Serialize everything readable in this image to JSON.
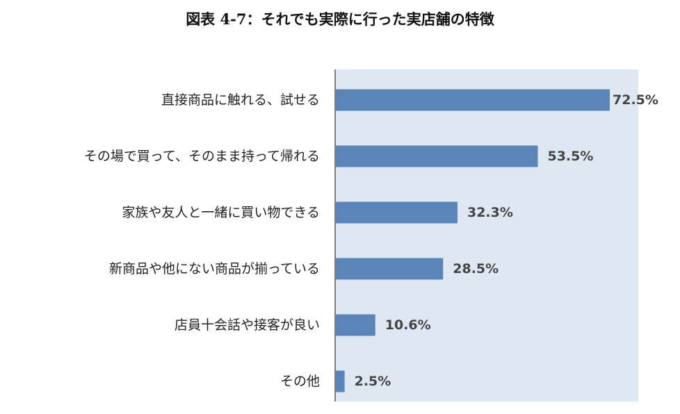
{
  "title": "図表 4-7：それでも実際に行った実店舗の特徴",
  "chart_data": {
    "type": "bar",
    "orientation": "horizontal",
    "title": "図表 4-7：それでも実際に行った実店舗の特徴",
    "categories": [
      "直接商品に触れる、試せる",
      "その場で買って、そのまま持って帰れる",
      "家族や友人と一緒に買い物できる",
      "新商品や他にない商品が揃っている",
      "店員十会話や接客が良い",
      "その他"
    ],
    "values": [
      72.5,
      53.5,
      32.3,
      28.5,
      10.6,
      2.5
    ],
    "labels": [
      "72.5%",
      "53.5%",
      "32.3%",
      "28.5%",
      "10.6%",
      "2.5%"
    ],
    "xlim": [
      0,
      72.5
    ],
    "grid": false,
    "legend": "none",
    "colors": {
      "bar": "#5b84b8",
      "plot_bg": "#dfe7f2",
      "axis": "#7f7f7f"
    }
  }
}
